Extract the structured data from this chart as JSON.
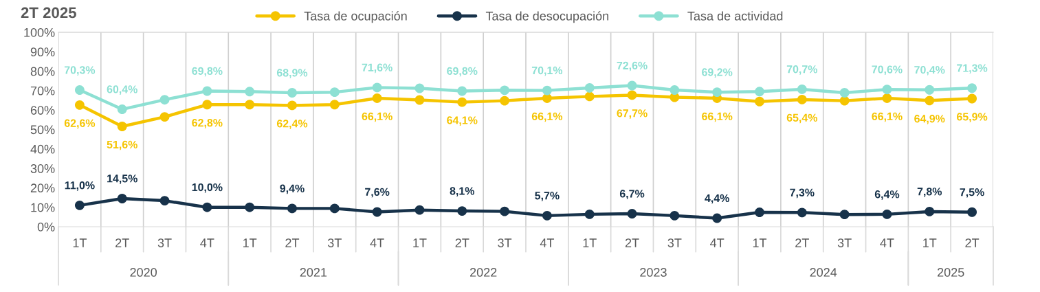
{
  "chart_data": {
    "type": "line",
    "title": "2T 2025",
    "categories": [
      "1T",
      "2T",
      "3T",
      "4T",
      "1T",
      "2T",
      "3T",
      "4T",
      "1T",
      "2T",
      "3T",
      "4T",
      "1T",
      "2T",
      "3T",
      "4T",
      "1T",
      "2T",
      "3T",
      "4T",
      "1T",
      "2T"
    ],
    "series": [
      {
        "name": "Tasa de ocupación",
        "color": "#f5c400",
        "values": [
          62.6,
          51.6,
          56.5,
          62.8,
          62.8,
          62.4,
          62.8,
          66.1,
          65.2,
          64.1,
          64.8,
          66.1,
          67.0,
          67.7,
          66.6,
          66.1,
          64.4,
          65.4,
          64.8,
          66.1,
          64.9,
          65.9
        ],
        "value_labels": [
          "62,6%",
          "51,6%",
          null,
          "62,8%",
          null,
          "62,4%",
          null,
          "66,1%",
          null,
          "64,1%",
          null,
          "66,1%",
          null,
          "67,7%",
          null,
          "66,1%",
          null,
          "65,4%",
          null,
          "66,1%",
          "64,9%",
          "65,9%"
        ]
      },
      {
        "name": "Tasa de desocupación",
        "color": "#17324a",
        "values": [
          11.0,
          14.5,
          13.4,
          10.0,
          10.0,
          9.4,
          9.4,
          7.6,
          8.6,
          8.1,
          7.9,
          5.7,
          6.4,
          6.7,
          5.7,
          4.4,
          7.4,
          7.3,
          6.3,
          6.4,
          7.8,
          7.5
        ],
        "value_labels": [
          "11,0%",
          "14,5%",
          null,
          "10,0%",
          null,
          "9,4%",
          null,
          "7,6%",
          null,
          "8,1%",
          null,
          "5,7%",
          null,
          "6,7%",
          null,
          "4,4%",
          null,
          "7,3%",
          null,
          "6,4%",
          "7,8%",
          "7,5%"
        ]
      },
      {
        "name": "Tasa de actividad",
        "color": "#8de0d3",
        "values": [
          70.3,
          60.4,
          65.3,
          69.8,
          69.5,
          68.9,
          69.2,
          71.6,
          71.2,
          69.8,
          70.2,
          70.1,
          71.4,
          72.6,
          70.3,
          69.2,
          69.5,
          70.7,
          68.9,
          70.6,
          70.4,
          71.3
        ],
        "value_labels": [
          "70,3%",
          "60,4%",
          null,
          "69,8%",
          null,
          "68,9%",
          null,
          "71,6%",
          null,
          "69,8%",
          null,
          "70,1%",
          null,
          "72,6%",
          null,
          "69,2%",
          null,
          "70,7%",
          null,
          "70,6%",
          "70,4%",
          "71,3%"
        ]
      }
    ],
    "annotations": [
      "2020",
      "2021",
      "2022",
      "2023",
      "2024",
      "2025"
    ],
    "ylim": [
      0,
      100
    ],
    "yticks": [
      {
        "value": 0,
        "label": "0%"
      },
      {
        "value": 10,
        "label": "10%"
      },
      {
        "value": 20,
        "label": "20%"
      },
      {
        "value": 30,
        "label": "30%"
      },
      {
        "value": 40,
        "label": "40%"
      },
      {
        "value": 50,
        "label": "50%"
      },
      {
        "value": 60,
        "label": "60%"
      },
      {
        "value": 70,
        "label": "70%"
      },
      {
        "value": 80,
        "label": "80%"
      },
      {
        "value": 90,
        "label": "90%"
      },
      {
        "value": 100,
        "label": "100%"
      }
    ],
    "grid": "x",
    "legend": "top",
    "marker": "circle",
    "line_style": "solid"
  }
}
